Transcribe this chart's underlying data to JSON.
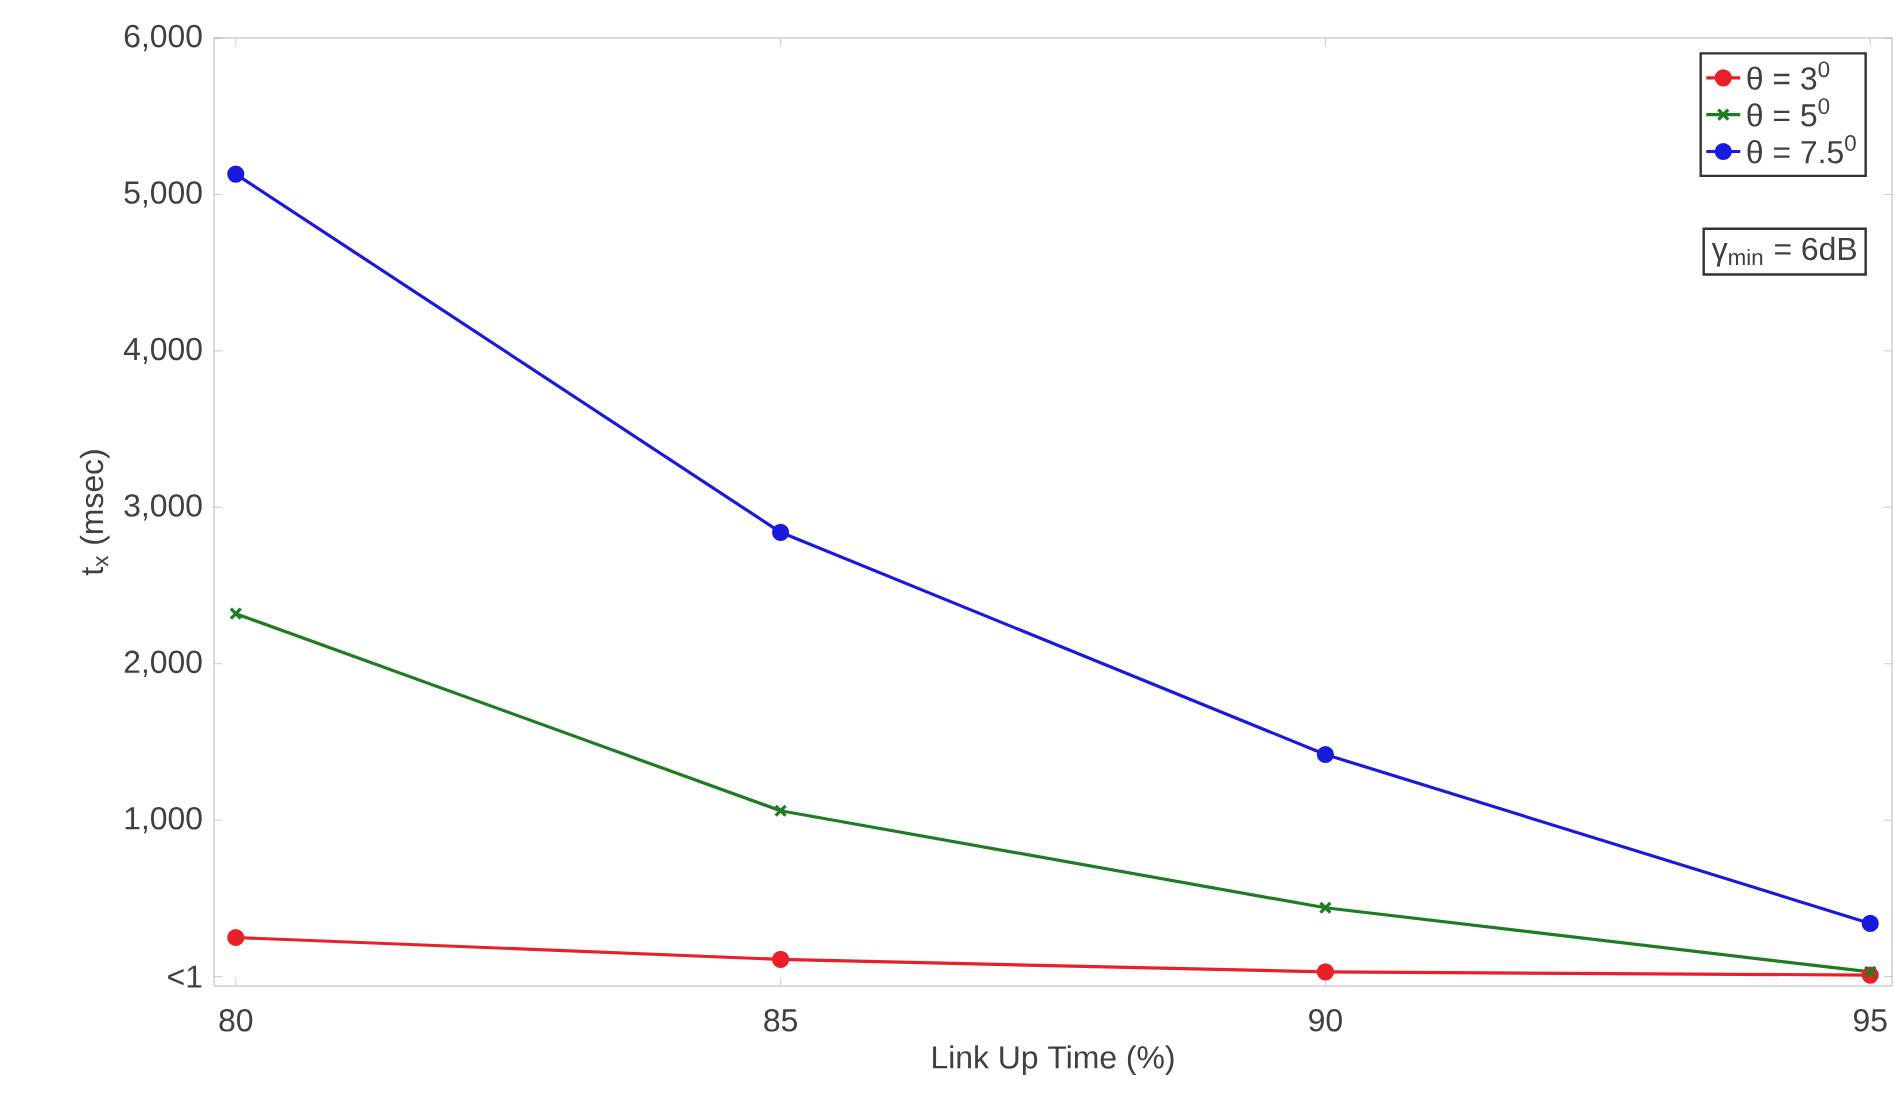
{
  "chart_data": {
    "type": "line",
    "xlabel": "Link Up Time (%)",
    "ylabel": "t$_{x}$ (msec)",
    "x": [
      80,
      85,
      90,
      95
    ],
    "series": [
      {
        "name": "θ = 3$^{0}$",
        "color": "#e8202a",
        "marker": "circle",
        "values": [
          250,
          110,
          30,
          10
        ]
      },
      {
        "name": "θ = 5$^{0}$",
        "color": "#1e7d23",
        "marker": "cross",
        "values": [
          2320,
          1060,
          440,
          30
        ]
      },
      {
        "name": "θ = 7.5$^{0}$",
        "color": "#1a1adc",
        "marker": "circle",
        "values": [
          5130,
          2840,
          1420,
          340
        ]
      }
    ],
    "xlim": [
      79.8,
      95.2
    ],
    "xticks": [
      80,
      85,
      90,
      95
    ],
    "ylim": [
      -60,
      6000
    ],
    "yticks": [
      {
        "value": 0,
        "label": "<1"
      },
      {
        "value": 1000,
        "label": "1,000"
      },
      {
        "value": 2000,
        "label": "2,000"
      },
      {
        "value": 3000,
        "label": "3,000"
      },
      {
        "value": 4000,
        "label": "4,000"
      },
      {
        "value": 5000,
        "label": "5,000"
      },
      {
        "value": 6000,
        "label": "6,000"
      }
    ],
    "legend": "top right",
    "grid": false,
    "line_style": "solid",
    "annotations": [
      "γ$_{min}$ = 6dB"
    ]
  }
}
